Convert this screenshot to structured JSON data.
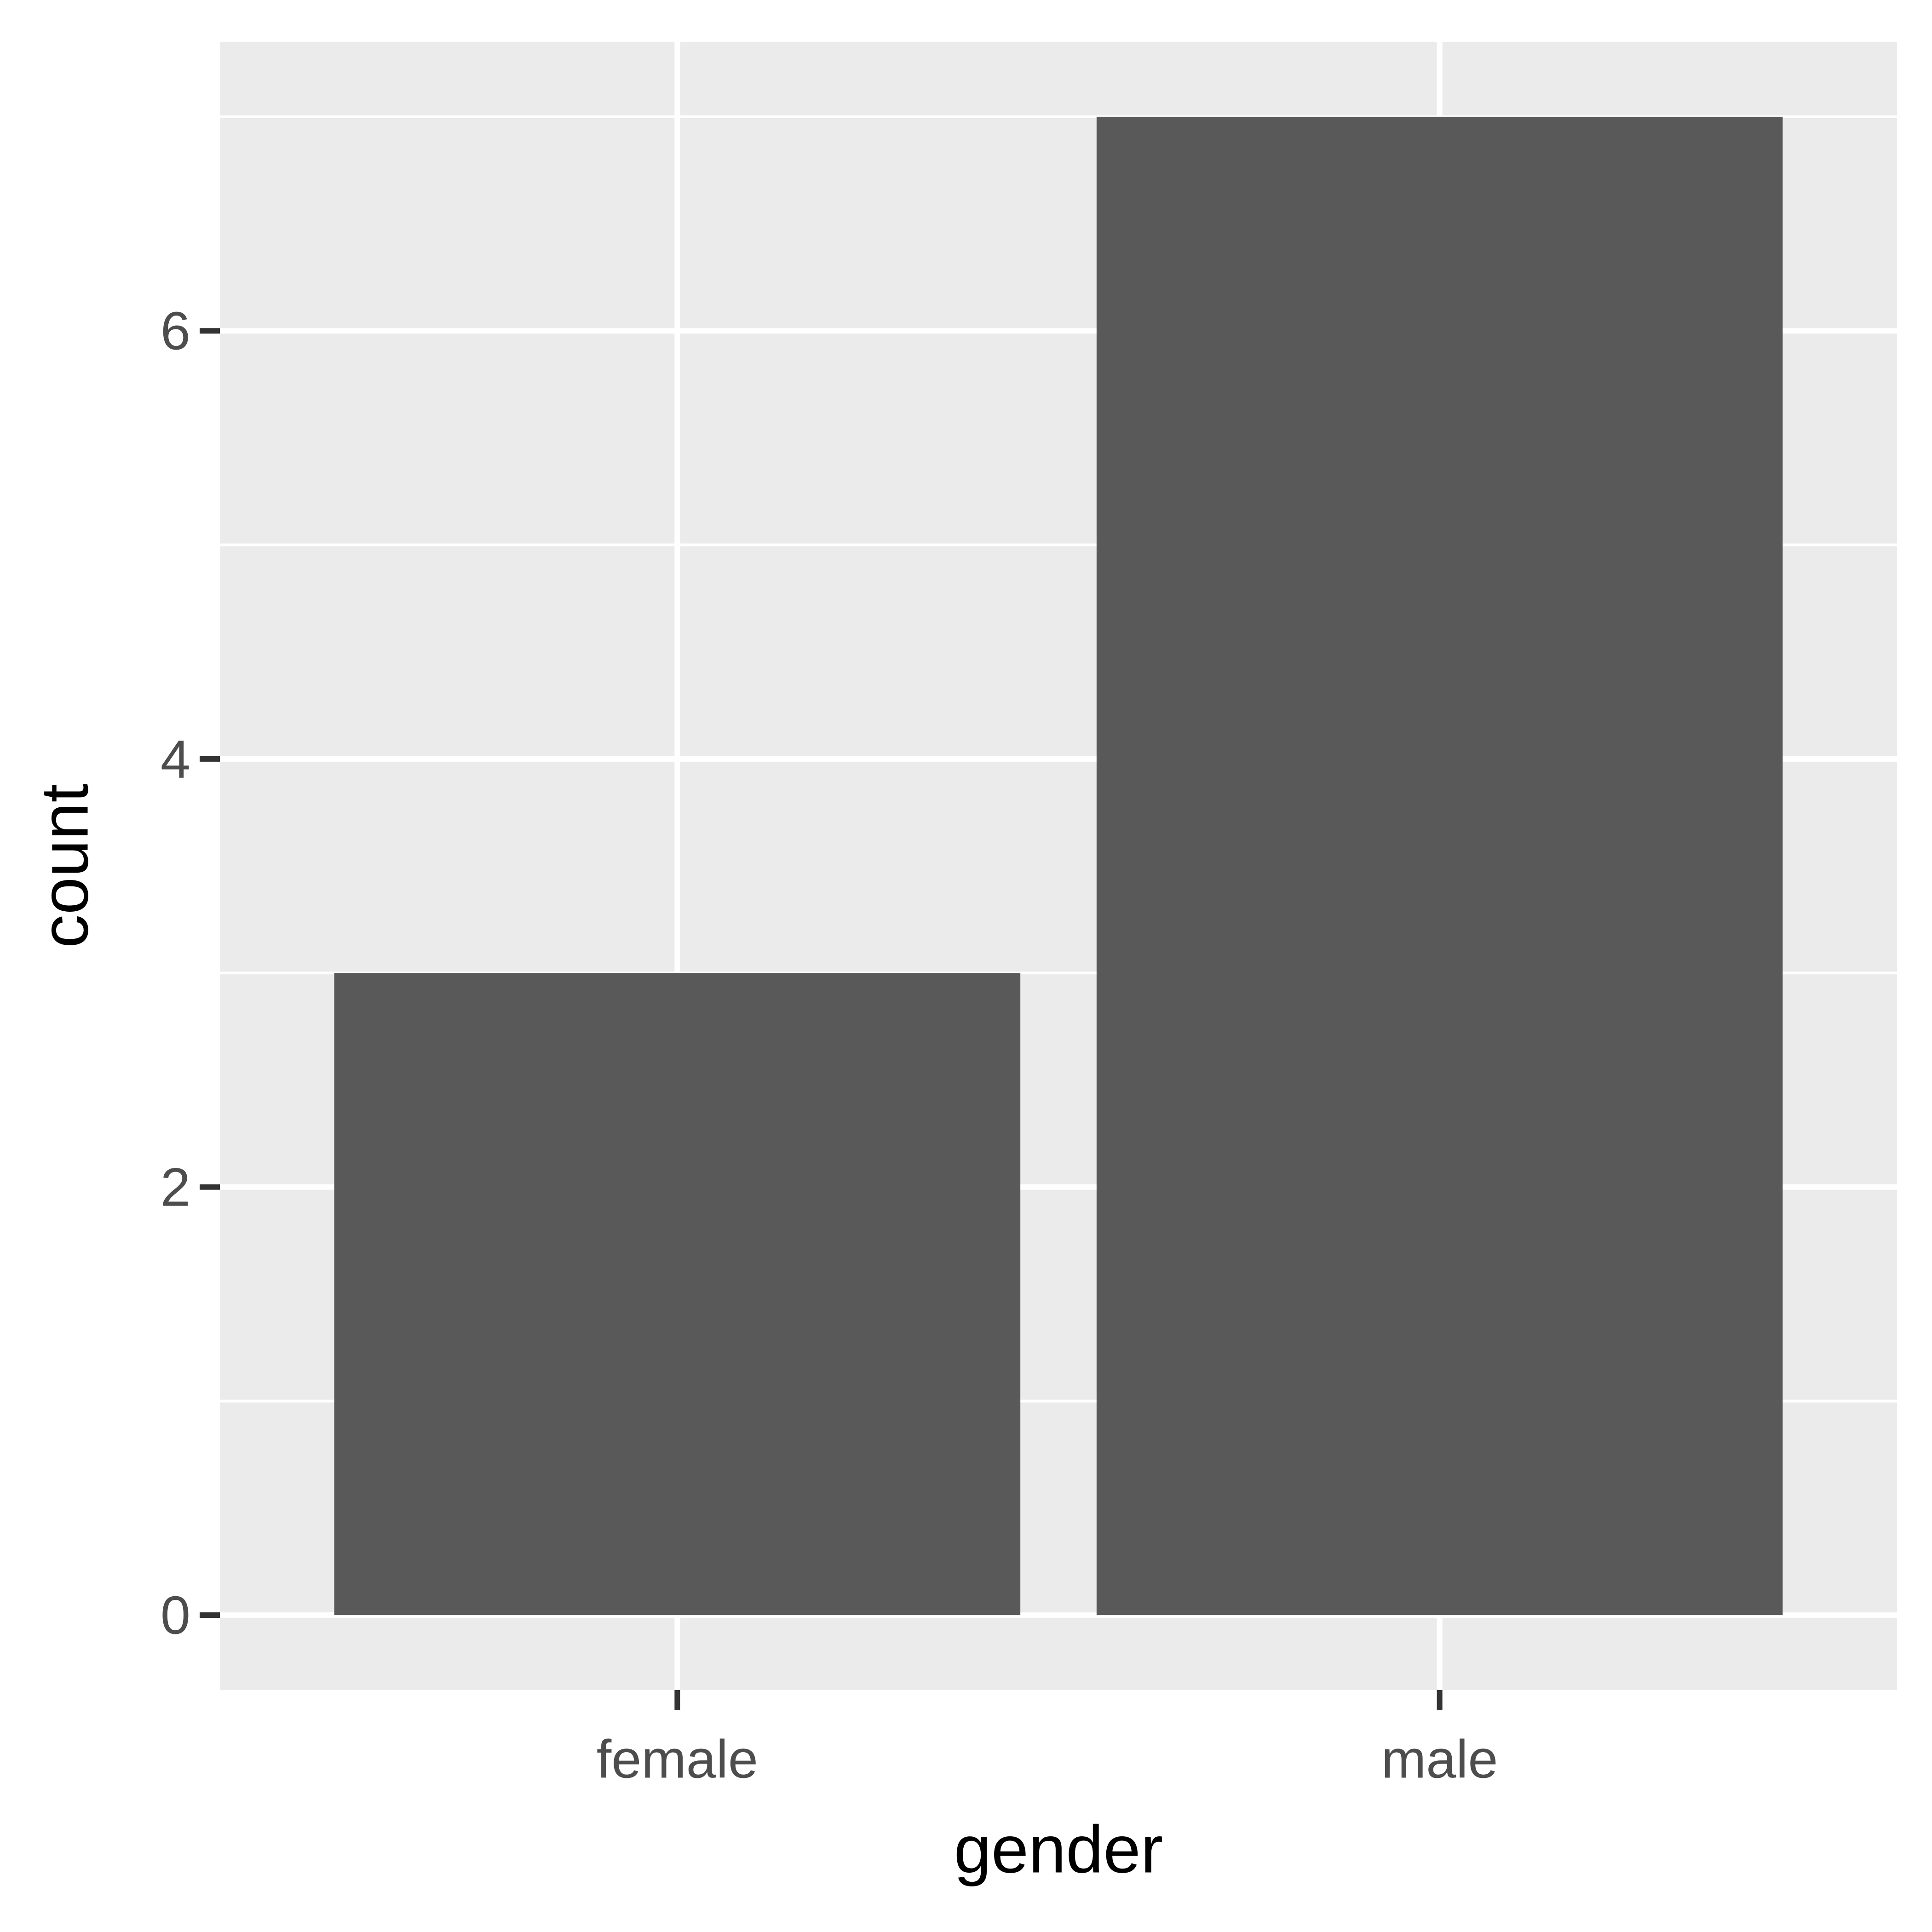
{
  "chart_data": {
    "type": "bar",
    "categories": [
      "female",
      "male"
    ],
    "values": [
      3,
      7
    ],
    "xlabel": "gender",
    "ylabel": "count",
    "ylim": [
      -0.35,
      7.35
    ],
    "yticks": [
      0,
      2,
      4,
      6
    ],
    "grid": true,
    "colors": {
      "panel_background": "#EBEBEB",
      "grid_line": "#FFFFFF",
      "bar_fill": "#595959",
      "tick_label": "#4D4D4D",
      "tick_mark": "#333333",
      "axis_title": "#000000"
    }
  }
}
